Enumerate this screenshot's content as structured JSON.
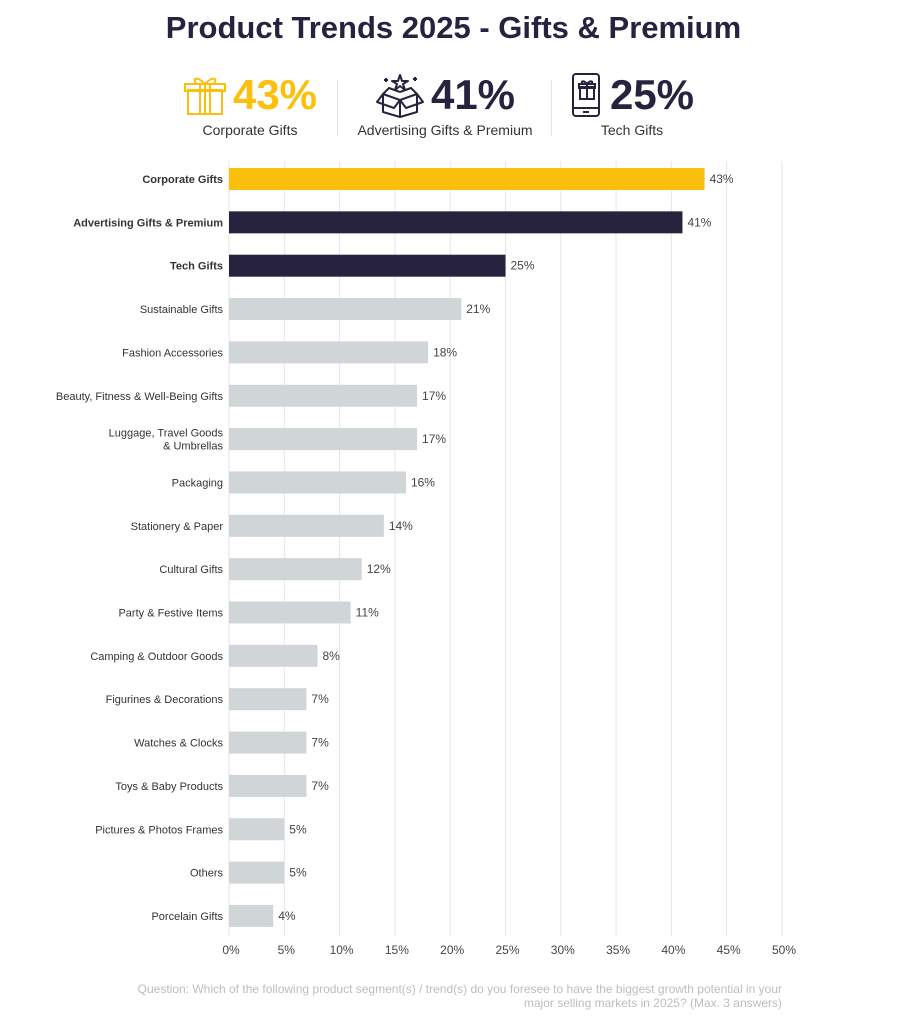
{
  "title": "Product Trends 2025 - Gifts & Premium",
  "kpis": [
    {
      "icon": "gift-box-icon",
      "value": "43%",
      "label": "Corporate Gifts",
      "color": "#fbbf0e"
    },
    {
      "icon": "open-box-stars-icon",
      "value": "41%",
      "label": "Advertising Gifts & Premium",
      "color": "#27233f"
    },
    {
      "icon": "phone-gift-icon",
      "value": "25%",
      "label": "Tech Gifts",
      "color": "#27233f"
    }
  ],
  "colors": {
    "highlight": "#fbbf0e",
    "dark": "#27233f",
    "muted": "#d0d5d8",
    "grid": "#e6e6e6"
  },
  "chart_data": {
    "type": "bar",
    "orientation": "horizontal",
    "categories": [
      "Corporate Gifts",
      "Advertising Gifts & Premium",
      "Tech Gifts",
      "Sustainable Gifts",
      "Fashion Accessories",
      "Beauty, Fitness & Well-Being Gifts",
      "Luggage, Travel Goods & Umbrellas",
      "Packaging",
      "Stationery & Paper",
      "Cultural Gifts",
      "Party & Festive Items",
      "Camping & Outdoor Goods",
      "Figurines & Decorations",
      "Watches & Clocks",
      "Toys & Baby Products",
      "Pictures & Photos Frames",
      "Others",
      "Porcelain Gifts"
    ],
    "category_lines": [
      [
        "Corporate Gifts"
      ],
      [
        "Advertising Gifts & Premium"
      ],
      [
        "Tech Gifts"
      ],
      [
        "Sustainable Gifts"
      ],
      [
        "Fashion Accessories"
      ],
      [
        "Beauty, Fitness & Well-Being Gifts"
      ],
      [
        "Luggage, Travel Goods",
        "& Umbrellas"
      ],
      [
        "Packaging"
      ],
      [
        "Stationery & Paper"
      ],
      [
        "Cultural Gifts"
      ],
      [
        "Party & Festive Items"
      ],
      [
        "Camping & Outdoor Goods"
      ],
      [
        "Figurines & Decorations"
      ],
      [
        "Watches & Clocks"
      ],
      [
        "Toys & Baby Products"
      ],
      [
        "Pictures & Photos Frames"
      ],
      [
        "Others"
      ],
      [
        "Porcelain Gifts"
      ]
    ],
    "values": [
      43,
      41,
      25,
      21,
      18,
      17,
      17,
      16,
      14,
      12,
      11,
      8,
      7,
      7,
      7,
      5,
      5,
      4
    ],
    "value_labels": [
      "43%",
      "41%",
      "25%",
      "21%",
      "18%",
      "17%",
      "17%",
      "16%",
      "14%",
      "12%",
      "11%",
      "8%",
      "7%",
      "7%",
      "7%",
      "5%",
      "5%",
      "4%"
    ],
    "bold_top": 3,
    "xlim": [
      0,
      50
    ],
    "xticks": [
      0,
      5,
      10,
      15,
      20,
      25,
      30,
      35,
      40,
      45,
      50
    ],
    "xtick_labels": [
      "0%",
      "5%",
      "10%",
      "15%",
      "20%",
      "25%",
      "30%",
      "35%",
      "40%",
      "45%",
      "50%"
    ],
    "grid": true
  },
  "footnote": {
    "line1": "Question: Which of the following product segment(s) / trend(s) do you foresee to have the biggest growth potential in your",
    "line2": "major selling markets in 2025? (Max. 3 answers)"
  }
}
